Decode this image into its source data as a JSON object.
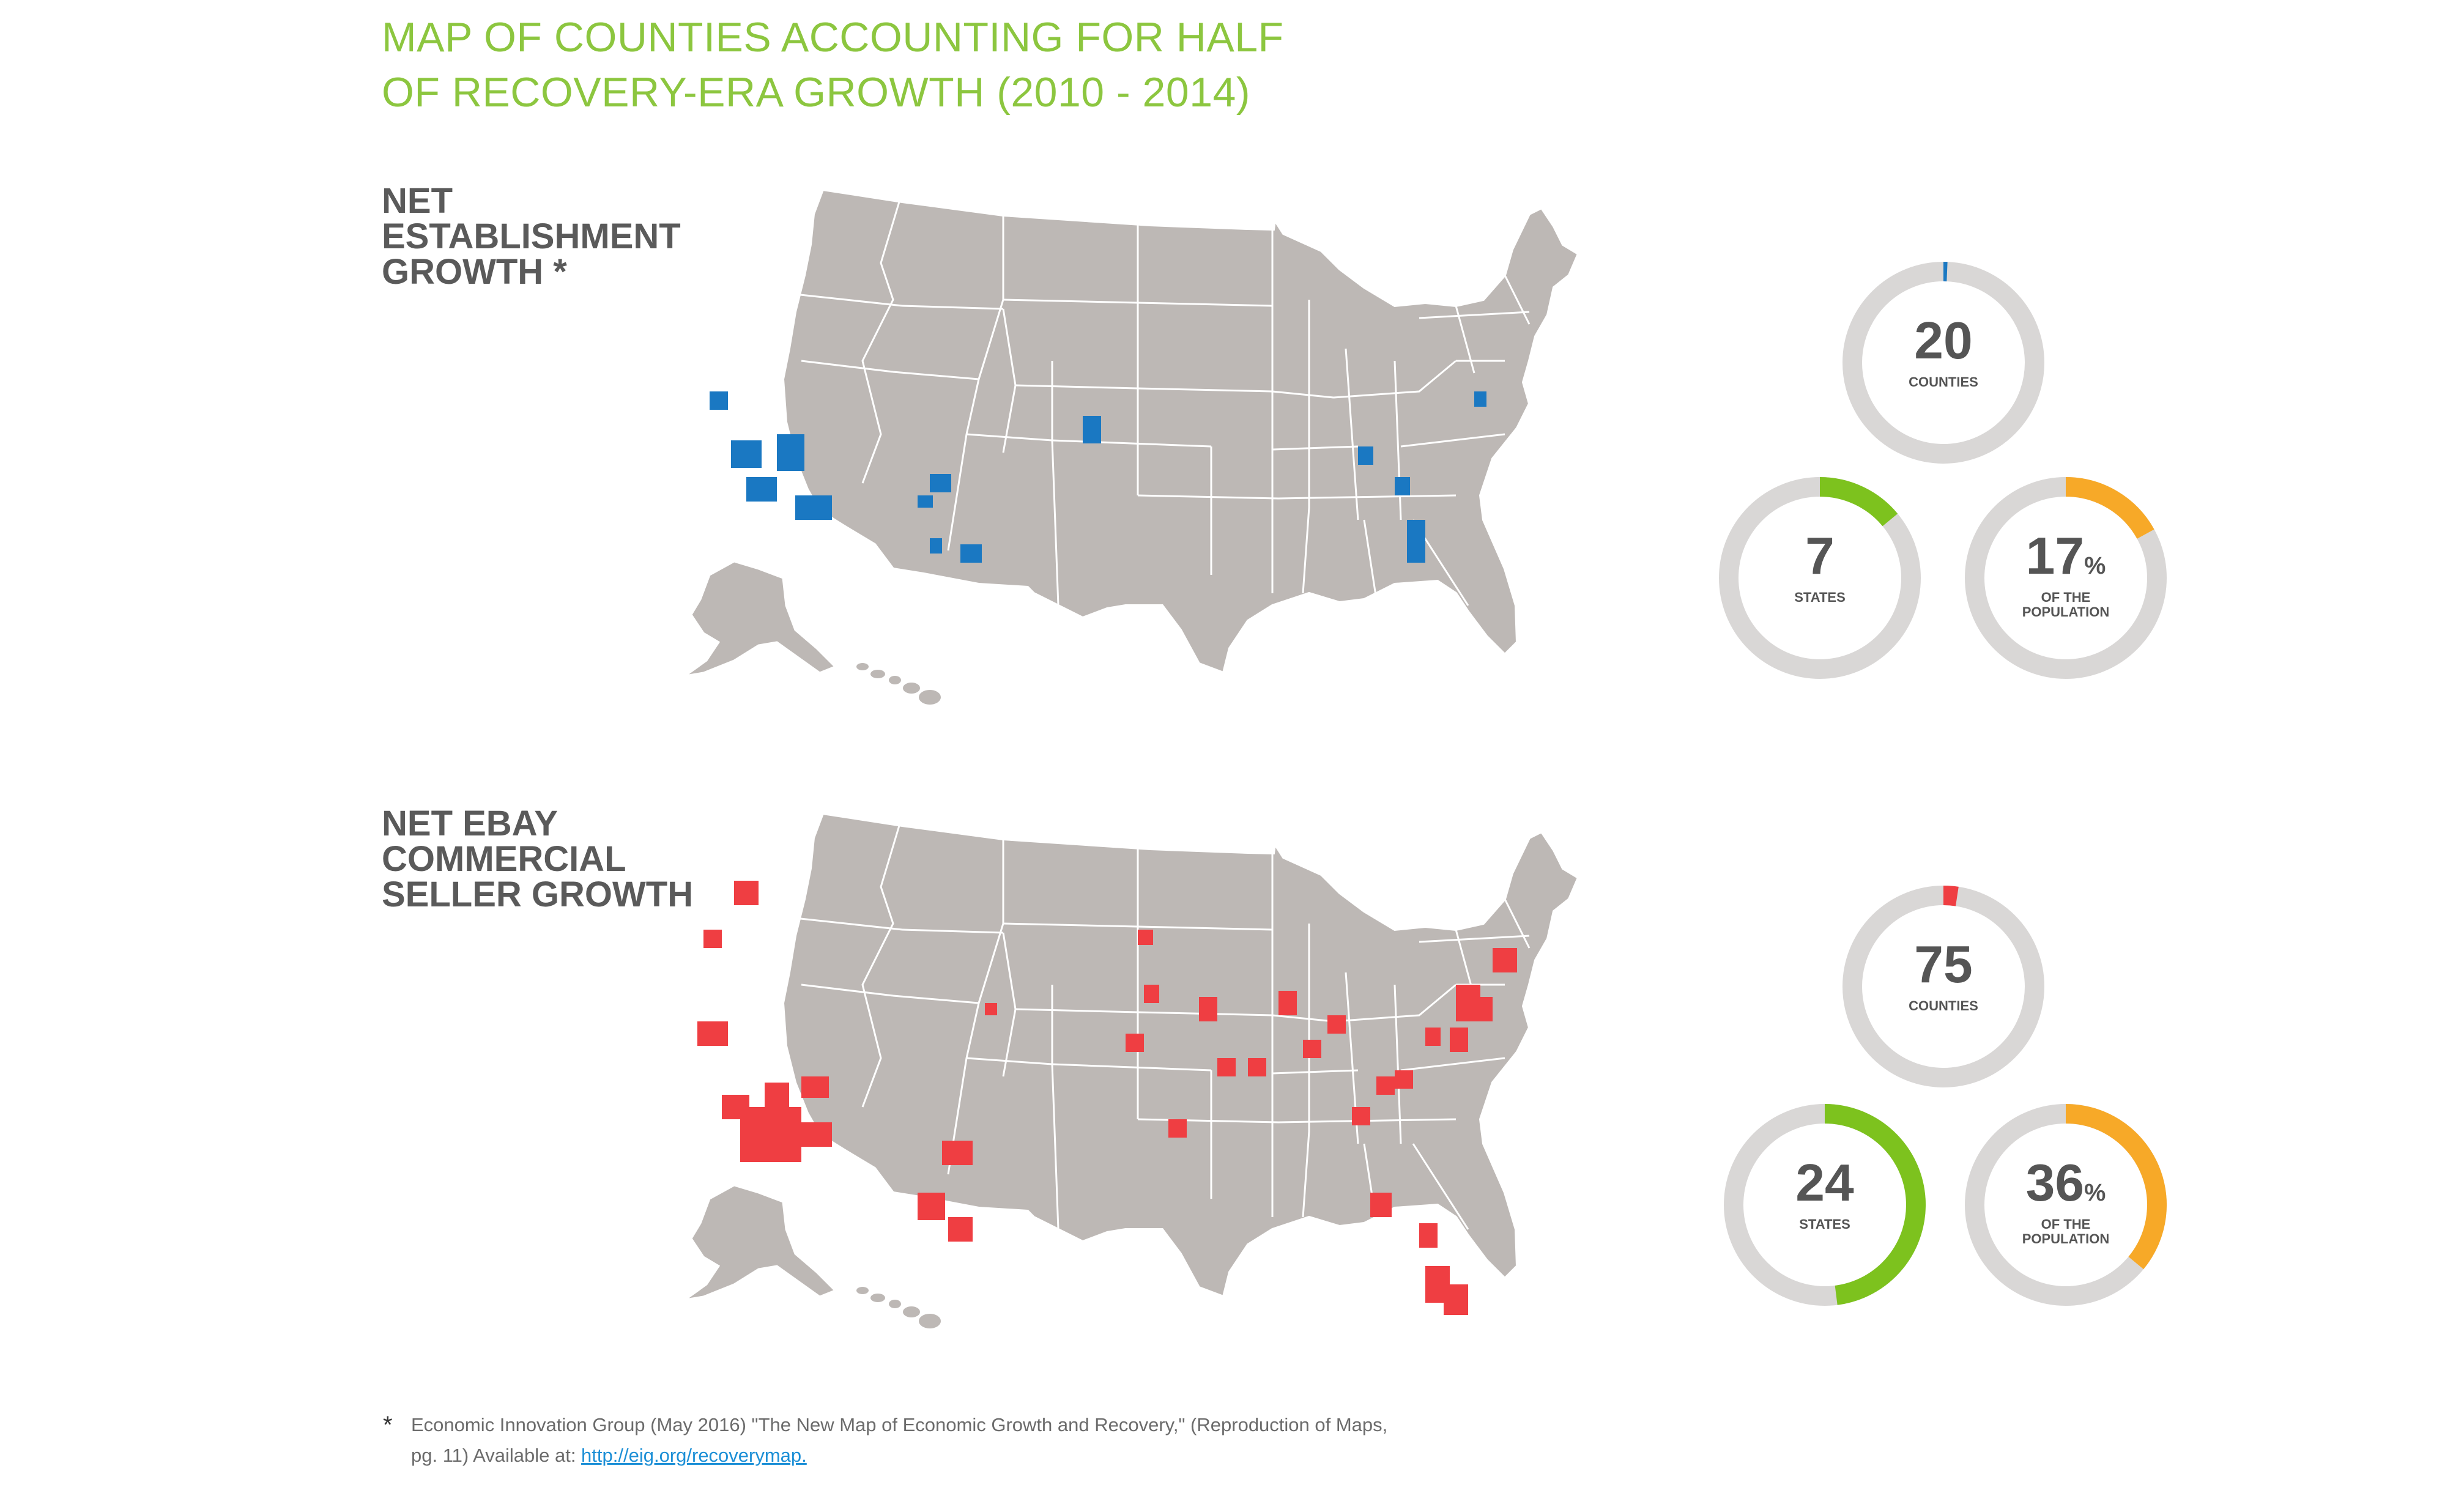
{
  "title": {
    "line1": "MAP OF COUNTIES ACCOUNTING FOR HALF",
    "line2": "OF RECOVERY-ERA GROWTH (2010 - 2014)"
  },
  "colors": {
    "title": "#8cc63f",
    "land": "#bdb8b5",
    "borders": "#ffffff",
    "establishment_highlight": "#1a78c2",
    "ebay_highlight": "#ef3e42",
    "counties_ring": "#d9d7d6",
    "states_accent": "#7dc21e",
    "population_accent": "#f7a928"
  },
  "sections": [
    {
      "label_lines": [
        "NET",
        "ESTABLISHMENT",
        "GROWTH"
      ],
      "label_marker": "*",
      "highlight_color": "#1a78c2",
      "stats": {
        "counties": {
          "value": "20",
          "unit": "",
          "caption": "COUNTIES",
          "fraction": 0.0064
        },
        "states": {
          "value": "7",
          "unit": "",
          "caption": "STATES",
          "fraction": 0.14
        },
        "population": {
          "value": "17",
          "unit": "%",
          "caption": "OF THE POPULATION",
          "fraction": 0.17
        }
      }
    },
    {
      "label_lines": [
        "NET EBAY",
        "COMMERCIAL",
        "SELLER GROWTH"
      ],
      "label_marker": "",
      "highlight_color": "#ef3e42",
      "stats": {
        "counties": {
          "value": "75",
          "unit": "",
          "caption": "COUNTIES",
          "fraction": 0.024
        },
        "states": {
          "value": "24",
          "unit": "",
          "caption": "STATES",
          "fraction": 0.48
        },
        "population": {
          "value": "36",
          "unit": "%",
          "caption": "OF THE POPULATION",
          "fraction": 0.36
        }
      }
    }
  ],
  "footnote": {
    "marker": "*",
    "text": "Economic Innovation Group (May 2016) \"The New Map of Economic Growth and Recovery,\" (Reproduction of Maps, pg. 11) Available at: ",
    "link_text": "http://eig.org/recoverymap."
  }
}
